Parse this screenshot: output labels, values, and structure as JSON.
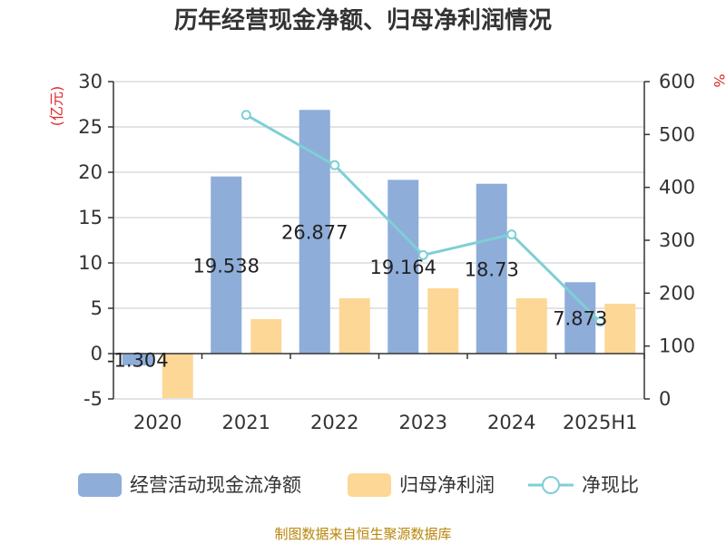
{
  "chart_data": {
    "type": "bar",
    "title": "历年经营现金净额、归母净利润情况",
    "categories": [
      "2020",
      "2021",
      "2022",
      "2023",
      "2024",
      "2025H1"
    ],
    "left_axis": {
      "unit": "(亿元)",
      "ylim": [
        -5,
        30
      ],
      "ticks": [
        -5,
        0,
        5,
        10,
        15,
        20,
        25,
        30
      ]
    },
    "right_axis": {
      "unit": "%",
      "ylim": [
        0,
        600
      ],
      "ticks": [
        0,
        100,
        200,
        300,
        400,
        500,
        600
      ]
    },
    "series": [
      {
        "name": "经营活动现金流净额",
        "type": "bar",
        "axis": "left",
        "color": "#8eadd9",
        "values": [
          -1.304,
          19.538,
          26.877,
          19.164,
          18.73,
          7.873
        ],
        "labels": [
          "-1.304",
          "19.538",
          "26.877",
          "19.164",
          "18.73",
          "7.873"
        ]
      },
      {
        "name": "归母净利润",
        "type": "bar",
        "axis": "left",
        "color": "#fdd795",
        "values": [
          -4.9,
          3.8,
          6.1,
          7.2,
          6.1,
          5.5
        ]
      },
      {
        "name": "净现比",
        "type": "line",
        "axis": "right",
        "color": "#7ecfd6",
        "values": [
          null,
          537,
          442,
          272,
          311,
          146
        ]
      }
    ],
    "grid": true,
    "legend_position": "bottom"
  },
  "source_note": "制图数据来自恒生聚源数据库"
}
